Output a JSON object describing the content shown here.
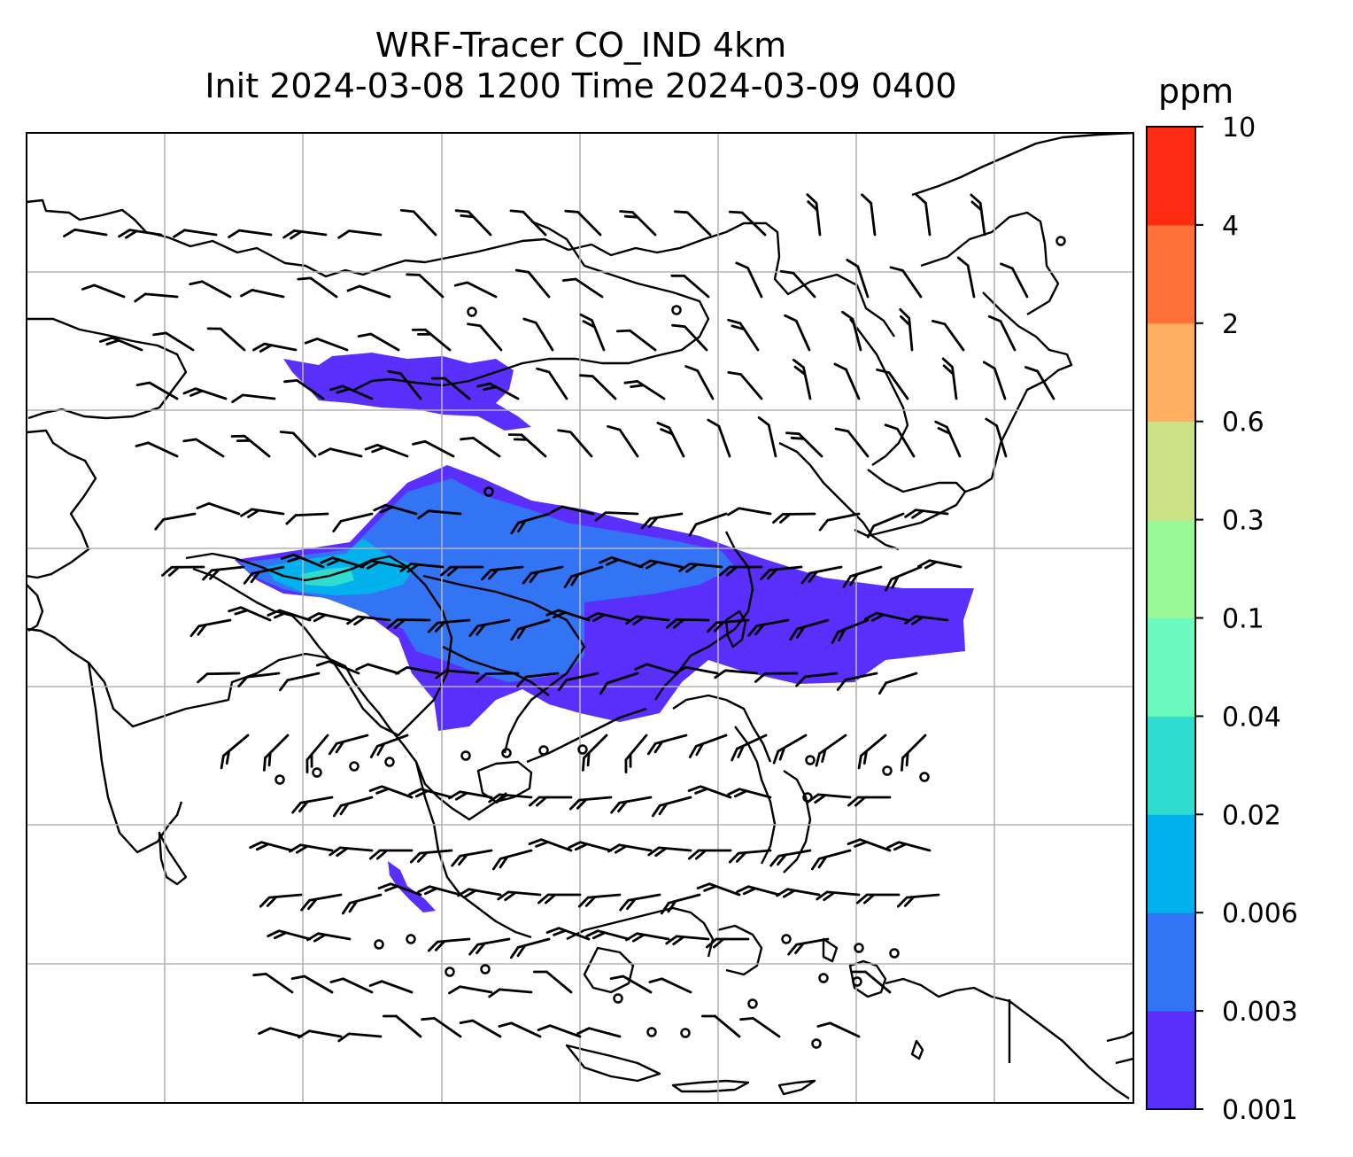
{
  "title": {
    "line1": "WRF-Tracer CO_IND 4km",
    "line2": "Init 2024-03-08 1200 Time 2024-03-09 0400"
  },
  "colorbar": {
    "unit": "ppm",
    "levels": [
      "0.001",
      "0.003",
      "0.006",
      "0.02",
      "0.04",
      "0.1",
      "0.3",
      "0.6",
      "2",
      "4",
      "10"
    ],
    "colors": [
      "#5b2ffb",
      "#3274f4",
      "#03b1ec",
      "#2fdccf",
      "#6bf9bd",
      "#99f996",
      "#cde186",
      "#fdb160",
      "#fe7139",
      "#fe2b13"
    ]
  },
  "map": {
    "gridlines": true,
    "plume_colors": {
      "faint": "#5b2ffb",
      "low": "#3274f4",
      "mid": "#03b1ec",
      "high": "#2fdccf"
    }
  }
}
